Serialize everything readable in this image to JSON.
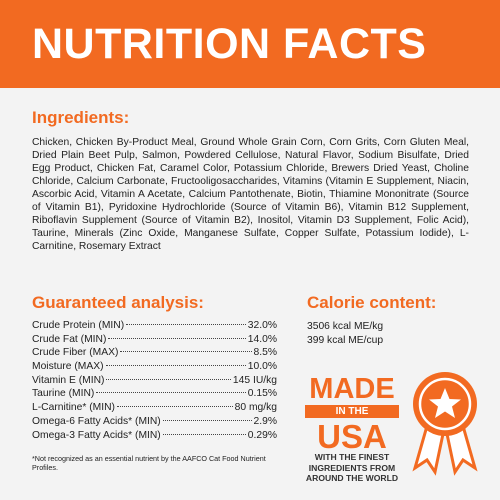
{
  "header": {
    "title": "NUTRITION FACTS"
  },
  "ingredients": {
    "title": "Ingredients:",
    "text": "Chicken, Chicken By-Product Meal, Ground Whole Grain Corn, Corn Grits, Corn Gluten Meal, Dried Plain Beet Pulp, Salmon, Powdered Cellulose, Natural Flavor, Sodium Bisulfate, Dried Egg Product, Chicken Fat, Caramel Color, Potassium Chloride, Brewers Dried Yeast, Choline Chloride, Calcium Carbonate, Fructooligosaccharides, Vitamins (Vitamin E Supplement, Niacin, Ascorbic Acid, Vitamin A Acetate, Calcium Pantothenate, Biotin, Thiamine Mononitrate (Source of Vitamin B1), Pyridoxine Hydrochloride (Source of Vitamin B6), Vitamin B12 Supplement, Riboflavin Supplement (Source of Vitamin B2), Inositol, Vitamin D3 Supplement, Folic Acid), Taurine, Minerals (Zinc Oxide, Manganese Sulfate, Copper Sulfate, Potassium Iodide), L-Carnitine, Rosemary Extract"
  },
  "analysis": {
    "title": "Guaranteed analysis:",
    "rows": [
      {
        "label": "Crude Protein (MIN)",
        "value": "32.0%"
      },
      {
        "label": "Crude Fat (MIN)",
        "value": "14.0%"
      },
      {
        "label": "Crude Fiber (MAX)",
        "value": "8.5%"
      },
      {
        "label": "Moisture (MAX)",
        "value": "10.0%"
      },
      {
        "label": "Vitamin E (MIN)",
        "value": "145 IU/kg"
      },
      {
        "label": "Taurine (MIN)",
        "value": "0.15%"
      },
      {
        "label": "L-Carnitine* (MIN)",
        "value": "80 mg/kg"
      },
      {
        "label": "Omega-6 Fatty Acids* (MIN)",
        "value": "2.9%"
      },
      {
        "label": "Omega-3 Fatty Acids* (MIN)",
        "value": "0.29%"
      }
    ]
  },
  "calorie": {
    "title": "Calorie content:",
    "lines": [
      "3506 kcal ME/kg",
      "399 kcal ME/cup"
    ]
  },
  "badge": {
    "made": "MADE",
    "in_the": "IN THE",
    "usa": "USA",
    "tagline": [
      "WITH THE FINEST",
      "INGREDIENTS FROM",
      "AROUND THE WORLD"
    ]
  },
  "footnote": "*Not recognized as an essential nutrient by the AAFCO Cat Food Nutrient Profiles."
}
